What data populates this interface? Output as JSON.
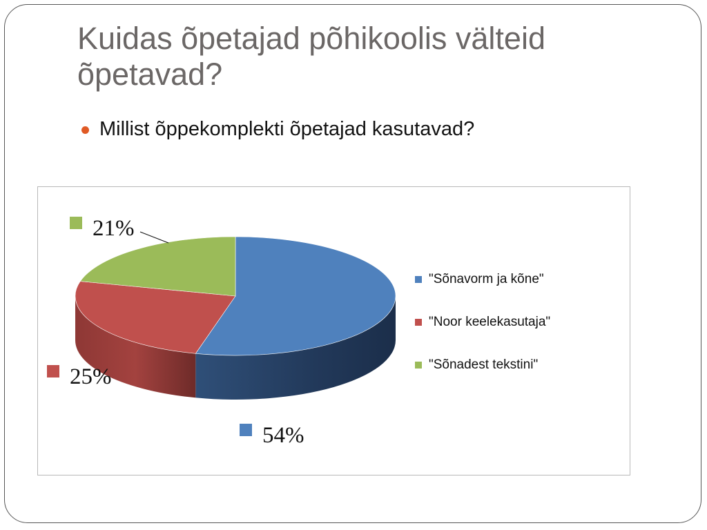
{
  "slide": {
    "title": "Kuidas õpetajad põhikoolis välteid õpetavad?",
    "bullet": "Millist õppekomplekti õpetajad kasutavad?"
  },
  "chart_data": {
    "type": "pie",
    "style": "3d",
    "categories": [
      "\"Sõnavorm ja kõne\"",
      "\"Noor keelekasutaja\"",
      "\"Sõnadest tekstini\""
    ],
    "values": [
      54,
      25,
      21
    ],
    "data_labels": [
      "54%",
      "25%",
      "21%"
    ],
    "colors": [
      "#4f81bd",
      "#c0504d",
      "#9bbb59"
    ],
    "legend_position": "right",
    "grid": false
  }
}
